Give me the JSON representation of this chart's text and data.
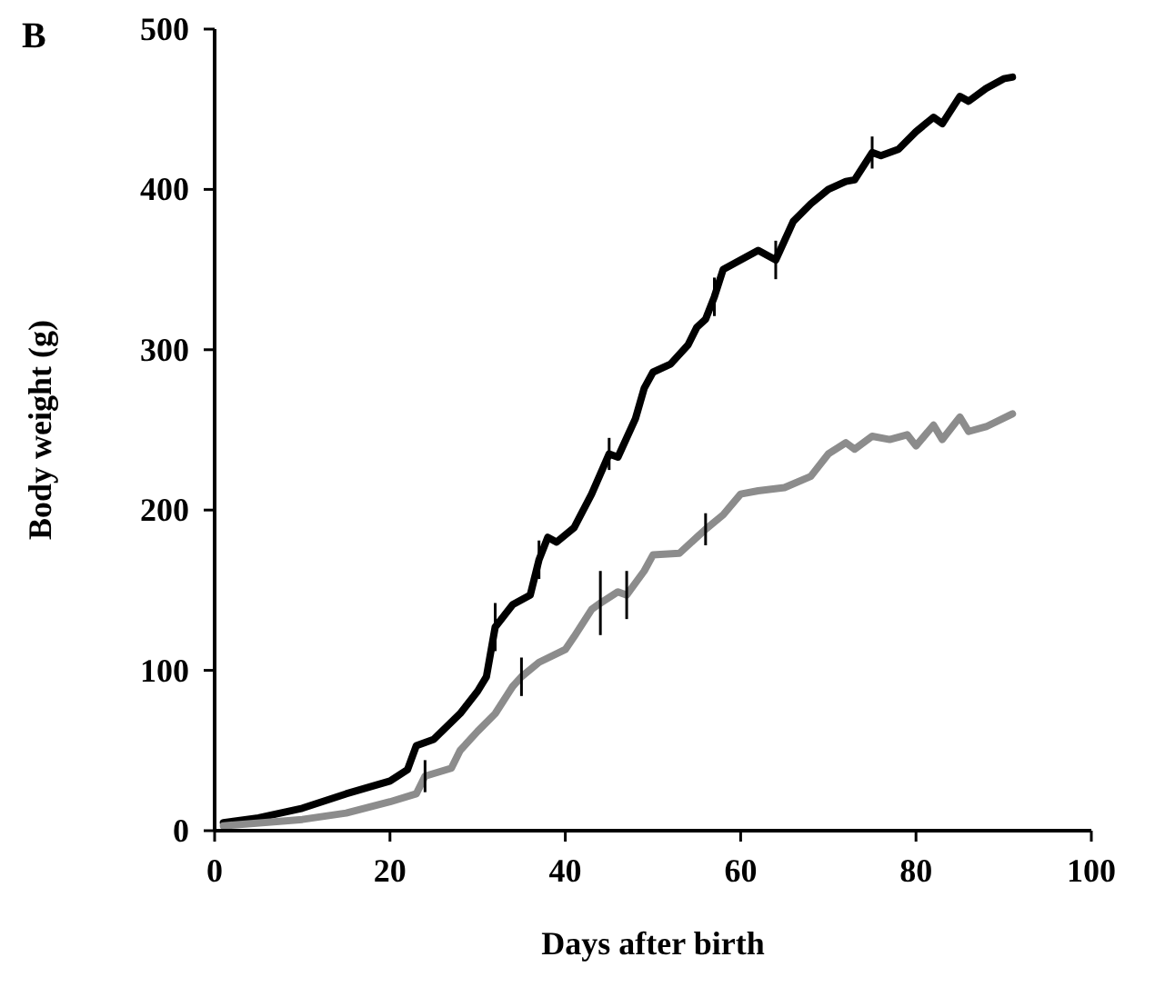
{
  "chart_data": {
    "type": "line",
    "xlabel": "Days after birth",
    "ylabel": "Body weight (g)",
    "annotations": [
      "B"
    ],
    "xlim": [
      0,
      100
    ],
    "xticks": [
      0,
      20,
      40,
      60,
      80,
      100
    ],
    "ylim": [
      0,
      500
    ],
    "yticks": [
      0,
      100,
      200,
      300,
      400,
      500
    ],
    "grid": false,
    "marker": "none",
    "line_style": "solid",
    "series": [
      {
        "color": "#000000",
        "x": [
          1,
          5,
          10,
          15,
          20,
          22,
          23,
          25,
          28,
          30,
          31,
          32,
          34,
          36,
          37,
          38,
          39,
          41,
          43,
          45,
          46,
          48,
          49,
          50,
          52,
          54,
          55,
          56,
          57,
          58,
          59,
          62,
          64,
          66,
          68,
          70,
          72,
          73,
          75,
          76,
          78,
          80,
          82,
          83,
          85,
          86,
          88,
          90,
          91
        ],
        "values": [
          5,
          8,
          14,
          23,
          31,
          38,
          53,
          57,
          73,
          87,
          96,
          127,
          141,
          147,
          169,
          183,
          180,
          189,
          210,
          235,
          233,
          257,
          276,
          286,
          291,
          303,
          314,
          319,
          333,
          350,
          353,
          362,
          356,
          380,
          391,
          400,
          405,
          406,
          423,
          421,
          425,
          436,
          445,
          441,
          458,
          455,
          463,
          469,
          470
        ],
        "errors": [
          null,
          null,
          null,
          null,
          null,
          null,
          null,
          null,
          null,
          null,
          null,
          15,
          null,
          null,
          12,
          null,
          null,
          null,
          null,
          10,
          null,
          null,
          null,
          null,
          null,
          null,
          null,
          null,
          12,
          null,
          null,
          null,
          12,
          null,
          null,
          null,
          null,
          null,
          10,
          null,
          null,
          null,
          null,
          null,
          null,
          null,
          null,
          null,
          null
        ]
      },
      {
        "color": "#8c8c8c",
        "x": [
          1,
          10,
          15,
          20,
          23,
          24,
          27,
          28,
          30,
          32,
          34,
          35,
          37,
          40,
          41,
          43,
          44,
          46,
          47,
          49,
          50,
          53,
          56,
          58,
          60,
          62,
          65,
          68,
          70,
          72,
          73,
          75,
          77,
          79,
          80,
          82,
          83,
          85,
          86,
          88,
          91
        ],
        "values": [
          3,
          7,
          11,
          18,
          23,
          34,
          39,
          50,
          62,
          73,
          90,
          96,
          105,
          113,
          121,
          138,
          142,
          149,
          147,
          162,
          172,
          173,
          188,
          197,
          210,
          212,
          214,
          221,
          235,
          242,
          238,
          246,
          244,
          247,
          240,
          253,
          244,
          258,
          249,
          252,
          260
        ],
        "errors": [
          null,
          null,
          null,
          null,
          null,
          10,
          null,
          null,
          null,
          null,
          null,
          12,
          null,
          null,
          null,
          null,
          20,
          null,
          15,
          null,
          null,
          null,
          10,
          null,
          null,
          null,
          null,
          null,
          null,
          null,
          null,
          null,
          null,
          null,
          null,
          null,
          null,
          null,
          null,
          null,
          null
        ]
      }
    ]
  }
}
